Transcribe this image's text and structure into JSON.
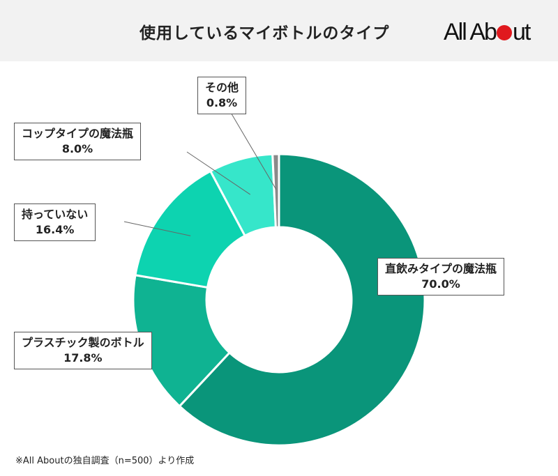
{
  "header": {
    "title": "使用しているマイボトルのタイプ",
    "logo": "All About"
  },
  "note": "※All Aboutの独自調査（n=500）より作成",
  "chart_data": {
    "type": "pie",
    "subtype": "donut",
    "title": "使用しているマイボトルのタイプ",
    "categories": [
      "直飲みタイプの魔法瓶",
      "プラスチック製のボトル",
      "持っていない",
      "コップタイプの魔法瓶",
      "その他"
    ],
    "values": [
      70.0,
      17.8,
      16.4,
      8.0,
      0.8
    ],
    "labels": [
      "70.0%",
      "17.8%",
      "16.4%",
      "8.0%",
      "0.8%"
    ],
    "colors": [
      "#0a957a",
      "#0fb392",
      "#0dd3b0",
      "#36e6ca",
      "#8a8a8a"
    ],
    "legend": "none"
  }
}
